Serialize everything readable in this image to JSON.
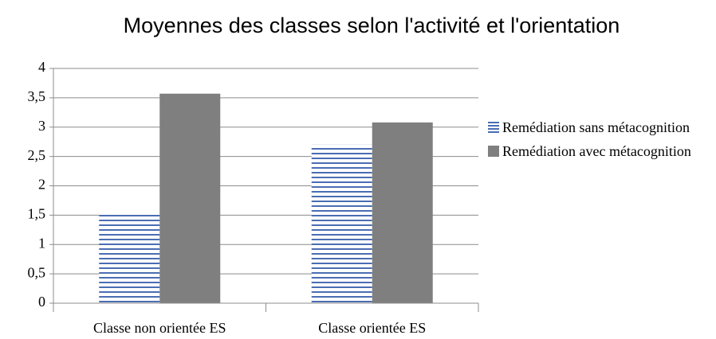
{
  "chart_data": {
    "type": "bar",
    "title": "Moyennes des classes selon l'activité et l'orientation",
    "categories": [
      "Classe non orientée ES",
      "Classe orientée ES"
    ],
    "series": [
      {
        "name": "Remédiation sans métacognition",
        "color": "#4a6db3",
        "values": [
          1.53,
          2.7
        ]
      },
      {
        "name": "Remédiation avec métacognition",
        "color": "#7f7f7f",
        "values": [
          3.57,
          3.08
        ]
      }
    ],
    "ylim": [
      0,
      4
    ],
    "yticks": [
      0,
      {
        "value": 0.5,
        "label": "0,5"
      },
      1,
      {
        "value": 1.5,
        "label": "1,5"
      },
      2,
      {
        "value": 2.5,
        "label": "2,5"
      },
      3,
      {
        "value": 3.5,
        "label": "3,5"
      },
      4
    ],
    "grid": true,
    "legend": "right"
  }
}
